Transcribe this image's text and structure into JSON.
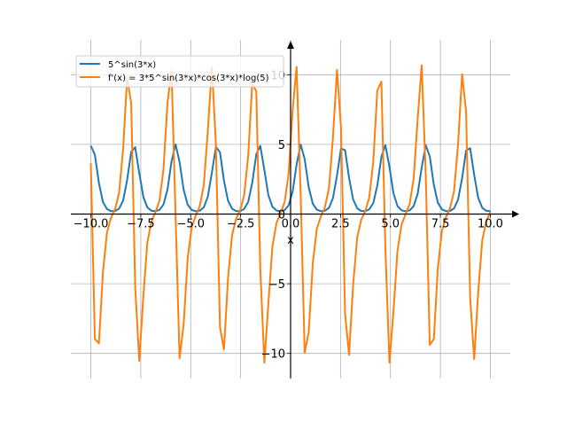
{
  "chart_data": {
    "type": "line",
    "title": "",
    "xlabel": "x",
    "ylabel": "",
    "xlim": [
      -11,
      11
    ],
    "ylim": [
      -11.8,
      12.5
    ],
    "grid": true,
    "legend_position": "top-left",
    "x_ticks": [
      -10,
      -7.5,
      -5,
      -2.5,
      0,
      2.5,
      5,
      7.5,
      10
    ],
    "x_tick_labels": [
      "−10.0",
      "−7.5",
      "−5.0",
      "−2.5",
      "0.0",
      "2.5",
      "5.0",
      "7.5",
      "10.0"
    ],
    "y_ticks": [
      -10,
      -5,
      0,
      5,
      10
    ],
    "y_tick_labels": [
      "−10",
      "−5",
      "0",
      "5",
      "10"
    ],
    "sampling": {
      "x_start": -10,
      "x_end": 10,
      "samples": 100
    },
    "series": [
      {
        "name": "5^sin(3*x)",
        "color": "#1f77b4",
        "expr": "5^sin(3x)"
      },
      {
        "name": "f'(x) = 3*5^sin(3*x)*cos(3*x)*log(5)",
        "color": "#ff7f0e",
        "expr": "3*5^sin(3x)*cos(3x)*ln5"
      }
    ]
  }
}
